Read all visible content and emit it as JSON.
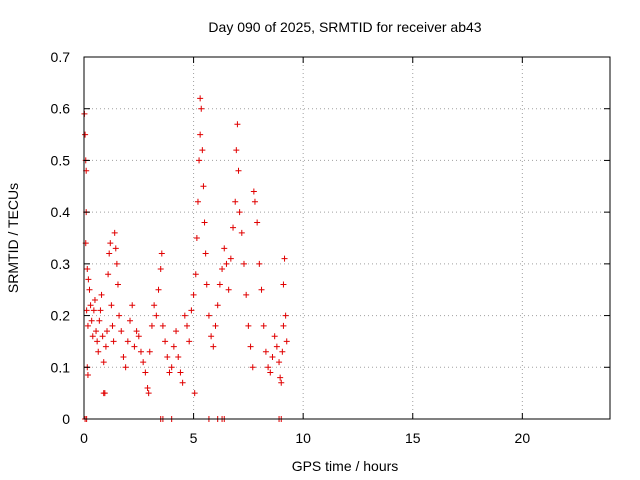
{
  "chart_data": {
    "type": "scatter",
    "title": "Day 090 of 2025, SRMTID for receiver ab43",
    "xlabel": "GPS time / hours",
    "ylabel": "SRMTID / TECUs",
    "xlim": [
      0,
      24
    ],
    "ylim": [
      0,
      0.7
    ],
    "xticks": [
      0,
      5,
      10,
      15,
      20
    ],
    "yticks": [
      0,
      0.1,
      0.2,
      0.3,
      0.4,
      0.5,
      0.6,
      0.7
    ],
    "grid": true,
    "marker": "+",
    "color": "#e00000",
    "series": [
      {
        "name": "SRMTID",
        "points": [
          [
            0.02,
            0.59
          ],
          [
            0.05,
            0.55
          ],
          [
            0.08,
            0.5
          ],
          [
            0.1,
            0.48
          ],
          [
            0.1,
            0.4
          ],
          [
            0.08,
            0.34
          ],
          [
            0.15,
            0.29
          ],
          [
            0.2,
            0.27
          ],
          [
            0.12,
            0.21
          ],
          [
            0.18,
            0.18
          ],
          [
            0.15,
            0.1
          ],
          [
            0.18,
            0.085
          ],
          [
            0.05,
            0.0
          ],
          [
            0.12,
            0.0
          ],
          [
            0.25,
            0.25
          ],
          [
            0.3,
            0.22
          ],
          [
            0.35,
            0.19
          ],
          [
            0.4,
            0.16
          ],
          [
            0.45,
            0.21
          ],
          [
            0.5,
            0.23
          ],
          [
            0.55,
            0.17
          ],
          [
            0.6,
            0.15
          ],
          [
            0.65,
            0.13
          ],
          [
            0.7,
            0.19
          ],
          [
            0.75,
            0.21
          ],
          [
            0.8,
            0.24
          ],
          [
            0.85,
            0.16
          ],
          [
            0.9,
            0.11
          ],
          [
            0.9,
            0.05
          ],
          [
            0.95,
            0.05
          ],
          [
            1.0,
            0.14
          ],
          [
            1.05,
            0.17
          ],
          [
            1.1,
            0.28
          ],
          [
            1.15,
            0.32
          ],
          [
            1.2,
            0.34
          ],
          [
            1.25,
            0.22
          ],
          [
            1.3,
            0.18
          ],
          [
            1.35,
            0.15
          ],
          [
            1.4,
            0.36
          ],
          [
            1.45,
            0.33
          ],
          [
            1.5,
            0.3
          ],
          [
            1.55,
            0.26
          ],
          [
            1.6,
            0.2
          ],
          [
            1.7,
            0.17
          ],
          [
            1.8,
            0.12
          ],
          [
            1.9,
            0.1
          ],
          [
            2.0,
            0.15
          ],
          [
            2.1,
            0.19
          ],
          [
            2.2,
            0.22
          ],
          [
            2.3,
            0.14
          ],
          [
            2.4,
            0.17
          ],
          [
            2.5,
            0.16
          ],
          [
            2.6,
            0.13
          ],
          [
            2.7,
            0.11
          ],
          [
            2.8,
            0.09
          ],
          [
            2.9,
            0.06
          ],
          [
            2.95,
            0.05
          ],
          [
            3.0,
            0.13
          ],
          [
            3.1,
            0.18
          ],
          [
            3.2,
            0.22
          ],
          [
            3.3,
            0.2
          ],
          [
            3.4,
            0.25
          ],
          [
            3.5,
            0.29
          ],
          [
            3.55,
            0.32
          ],
          [
            3.6,
            0.18
          ],
          [
            3.7,
            0.15
          ],
          [
            3.8,
            0.12
          ],
          [
            3.9,
            0.09
          ],
          [
            4.0,
            0.1
          ],
          [
            4.1,
            0.14
          ],
          [
            4.2,
            0.17
          ],
          [
            4.3,
            0.12
          ],
          [
            4.4,
            0.09
          ],
          [
            4.5,
            0.07
          ],
          [
            4.6,
            0.2
          ],
          [
            4.7,
            0.18
          ],
          [
            4.8,
            0.15
          ],
          [
            4.9,
            0.21
          ],
          [
            5.0,
            0.24
          ],
          [
            5.05,
            0.05
          ],
          [
            5.1,
            0.28
          ],
          [
            5.15,
            0.35
          ],
          [
            5.2,
            0.42
          ],
          [
            5.25,
            0.5
          ],
          [
            5.3,
            0.55
          ],
          [
            5.3,
            0.62
          ],
          [
            5.35,
            0.6
          ],
          [
            5.4,
            0.52
          ],
          [
            5.45,
            0.45
          ],
          [
            5.5,
            0.38
          ],
          [
            5.55,
            0.32
          ],
          [
            5.6,
            0.26
          ],
          [
            5.7,
            0.2
          ],
          [
            5.8,
            0.16
          ],
          [
            5.9,
            0.14
          ],
          [
            6.0,
            0.18
          ],
          [
            6.1,
            0.22
          ],
          [
            6.2,
            0.26
          ],
          [
            6.3,
            0.29
          ],
          [
            6.4,
            0.33
          ],
          [
            6.5,
            0.3
          ],
          [
            6.6,
            0.25
          ],
          [
            6.7,
            0.31
          ],
          [
            6.8,
            0.37
          ],
          [
            6.9,
            0.42
          ],
          [
            6.95,
            0.52
          ],
          [
            7.0,
            0.57
          ],
          [
            7.05,
            0.48
          ],
          [
            7.1,
            0.4
          ],
          [
            7.2,
            0.36
          ],
          [
            7.3,
            0.3
          ],
          [
            7.4,
            0.24
          ],
          [
            7.5,
            0.18
          ],
          [
            7.6,
            0.14
          ],
          [
            7.7,
            0.1
          ],
          [
            7.75,
            0.44
          ],
          [
            7.8,
            0.42
          ],
          [
            7.9,
            0.38
          ],
          [
            8.0,
            0.3
          ],
          [
            8.1,
            0.25
          ],
          [
            8.2,
            0.18
          ],
          [
            8.3,
            0.13
          ],
          [
            8.4,
            0.1
          ],
          [
            8.5,
            0.09
          ],
          [
            8.6,
            0.12
          ],
          [
            8.7,
            0.16
          ],
          [
            8.8,
            0.14
          ],
          [
            8.9,
            0.11
          ],
          [
            8.95,
            0.08
          ],
          [
            9.0,
            0.07
          ],
          [
            9.05,
            0.13
          ],
          [
            9.1,
            0.18
          ],
          [
            9.1,
            0.26
          ],
          [
            9.15,
            0.31
          ],
          [
            9.2,
            0.2
          ],
          [
            9.25,
            0.15
          ],
          [
            3.5,
            0.0
          ],
          [
            3.6,
            0.0
          ],
          [
            4.0,
            0.0
          ],
          [
            5.7,
            0.0
          ],
          [
            6.1,
            0.0
          ],
          [
            6.3,
            0.0
          ],
          [
            6.4,
            0.0
          ],
          [
            8.9,
            0.0
          ],
          [
            9.0,
            0.0
          ]
        ]
      }
    ]
  }
}
